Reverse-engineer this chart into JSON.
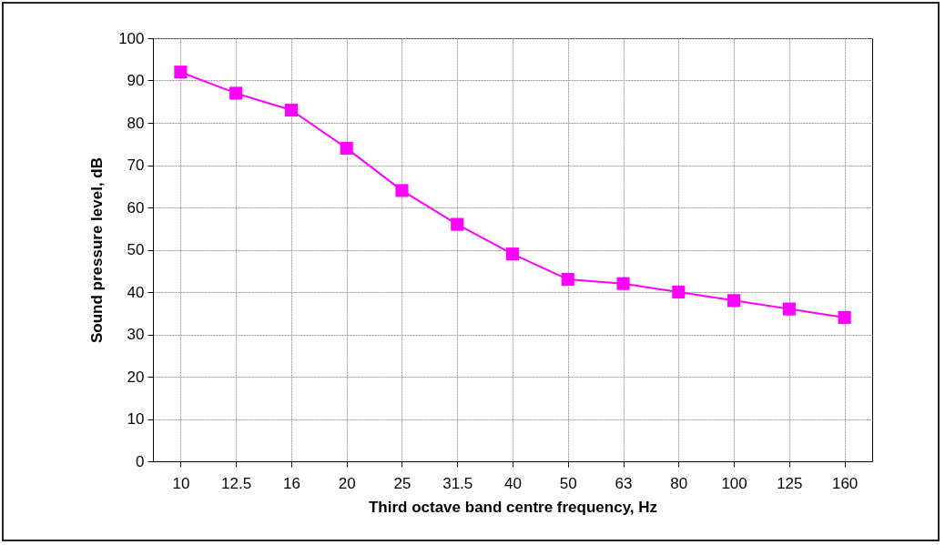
{
  "chart_data": {
    "type": "line",
    "xlabel": "Third octave band centre frequency, Hz",
    "ylabel": "Sound pressure level, dB",
    "categories": [
      "10",
      "12.5",
      "16",
      "20",
      "25",
      "31.5",
      "40",
      "50",
      "63",
      "80",
      "100",
      "125",
      "160"
    ],
    "series": [
      {
        "color": "#ff00ff",
        "values": [
          92,
          87,
          83,
          74,
          64,
          56,
          49,
          43,
          42,
          40,
          38,
          36,
          34
        ]
      }
    ],
    "ylim": [
      0,
      100
    ],
    "yticks": [
      0,
      10,
      20,
      30,
      40,
      50,
      60,
      70,
      80,
      90,
      100
    ],
    "grid": true,
    "marker": "square",
    "line_style": "solid"
  }
}
